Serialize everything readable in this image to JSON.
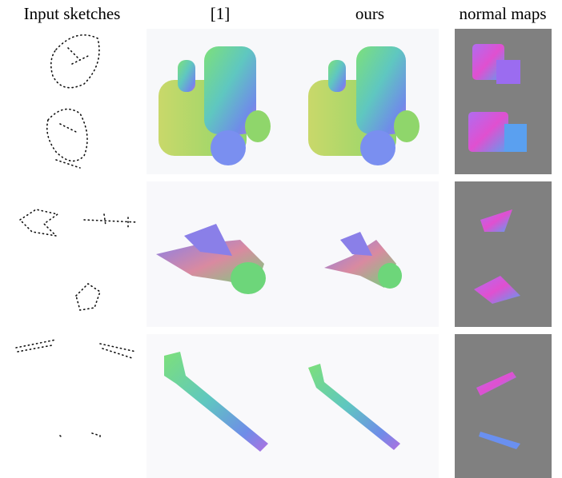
{
  "header": {
    "columns": [
      "Input sketches",
      "[1]",
      "ours",
      "normal maps"
    ]
  }
}
